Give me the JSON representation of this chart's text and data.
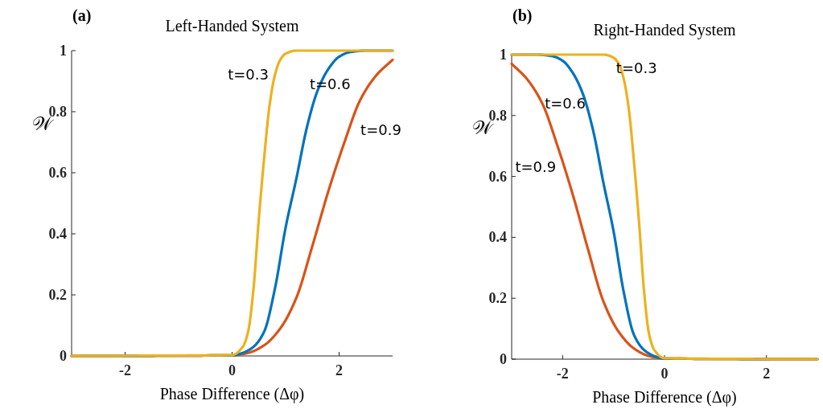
{
  "chart_data": [
    {
      "type": "line",
      "title": "Left-Handed System",
      "xlabel": "Phase Difference (Δφ)",
      "ylabel": "𝒲",
      "annotations": [
        "(a)"
      ],
      "xlim": [
        -3,
        3
      ],
      "ylim": [
        0,
        1
      ],
      "xticks": [
        -2,
        0,
        2
      ],
      "yticks": [
        0,
        0.2,
        0.4,
        0.6,
        0.8,
        1
      ],
      "grid": false,
      "legend": false,
      "marker": "none",
      "line_style": "solid",
      "series": [
        {
          "name": "t=0.9",
          "color": "#d95319",
          "x": [
            -3,
            0,
            0.3,
            0.6,
            0.9,
            1.2,
            1.5,
            1.8,
            2.1,
            2.4,
            2.7,
            3.0
          ],
          "values": [
            0,
            0.002,
            0.01,
            0.035,
            0.09,
            0.19,
            0.36,
            0.54,
            0.7,
            0.84,
            0.92,
            0.97
          ]
        },
        {
          "name": "t=0.6",
          "color": "#0072bd",
          "x": [
            -3,
            0,
            0.2,
            0.4,
            0.6,
            0.8,
            1.0,
            1.2,
            1.4,
            1.6,
            1.8,
            2.0,
            2.2,
            2.5,
            3
          ],
          "values": [
            0,
            0.002,
            0.01,
            0.03,
            0.08,
            0.22,
            0.42,
            0.58,
            0.75,
            0.87,
            0.94,
            0.98,
            0.995,
            1,
            1
          ]
        },
        {
          "name": "t=0.3",
          "color": "#edb120",
          "x": [
            -3,
            0,
            0.2,
            0.3,
            0.4,
            0.5,
            0.6,
            0.7,
            0.8,
            0.9,
            1.0,
            1.2,
            3
          ],
          "values": [
            0,
            0.003,
            0.03,
            0.08,
            0.22,
            0.45,
            0.65,
            0.82,
            0.92,
            0.97,
            0.99,
            1,
            1
          ]
        }
      ]
    },
    {
      "type": "line",
      "title": "Right-Handed System",
      "xlabel": "Phase Difference (Δφ)",
      "ylabel": "𝒲",
      "annotations": [
        "(b)"
      ],
      "xlim": [
        -3,
        3
      ],
      "ylim": [
        0,
        1
      ],
      "xticks": [
        -2,
        0,
        2
      ],
      "yticks": [
        0,
        0.2,
        0.4,
        0.6,
        0.8,
        1
      ],
      "grid": false,
      "legend": false,
      "marker": "none",
      "line_style": "solid",
      "series": [
        {
          "name": "t=0.9",
          "color": "#d95319",
          "x": [
            -3.0,
            -2.7,
            -2.4,
            -2.1,
            -1.8,
            -1.5,
            -1.2,
            -0.9,
            -0.6,
            -0.3,
            0,
            3
          ],
          "values": [
            0.97,
            0.92,
            0.84,
            0.7,
            0.54,
            0.36,
            0.19,
            0.09,
            0.035,
            0.01,
            0.002,
            0
          ]
        },
        {
          "name": "t=0.6",
          "color": "#0072bd",
          "x": [
            -3,
            -2.5,
            -2.2,
            -2.0,
            -1.8,
            -1.6,
            -1.4,
            -1.2,
            -1.0,
            -0.8,
            -0.6,
            -0.4,
            -0.2,
            0,
            3
          ],
          "values": [
            1,
            1,
            0.995,
            0.98,
            0.94,
            0.87,
            0.75,
            0.58,
            0.42,
            0.22,
            0.08,
            0.03,
            0.01,
            0.002,
            0
          ]
        },
        {
          "name": "t=0.3",
          "color": "#edb120",
          "x": [
            -3,
            -1.2,
            -1.0,
            -0.9,
            -0.8,
            -0.7,
            -0.6,
            -0.5,
            -0.4,
            -0.3,
            -0.2,
            0,
            3
          ],
          "values": [
            1,
            1,
            0.99,
            0.97,
            0.92,
            0.82,
            0.65,
            0.45,
            0.22,
            0.08,
            0.03,
            0.003,
            0
          ]
        }
      ]
    }
  ]
}
